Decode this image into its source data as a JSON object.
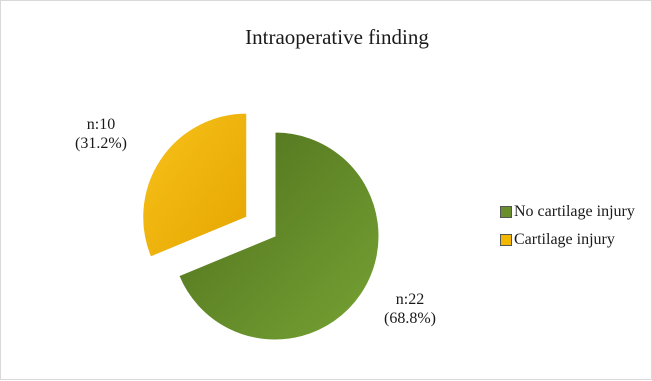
{
  "chart_data": {
    "type": "pie",
    "title": "Intraoperative finding",
    "slices": [
      {
        "label": "No cartilage injury",
        "value": 22,
        "percent": 68.8,
        "count_text": "n:22",
        "percent_text": "(68.8%)",
        "color": "#6b8e2c"
      },
      {
        "label": "Cartilage injury",
        "value": 10,
        "percent": 31.2,
        "count_text": "n:10",
        "percent_text": "(31.2%)",
        "color": "#f5b800"
      }
    ],
    "legend_position": "right",
    "exploded_slice": "Cartilage injury"
  }
}
